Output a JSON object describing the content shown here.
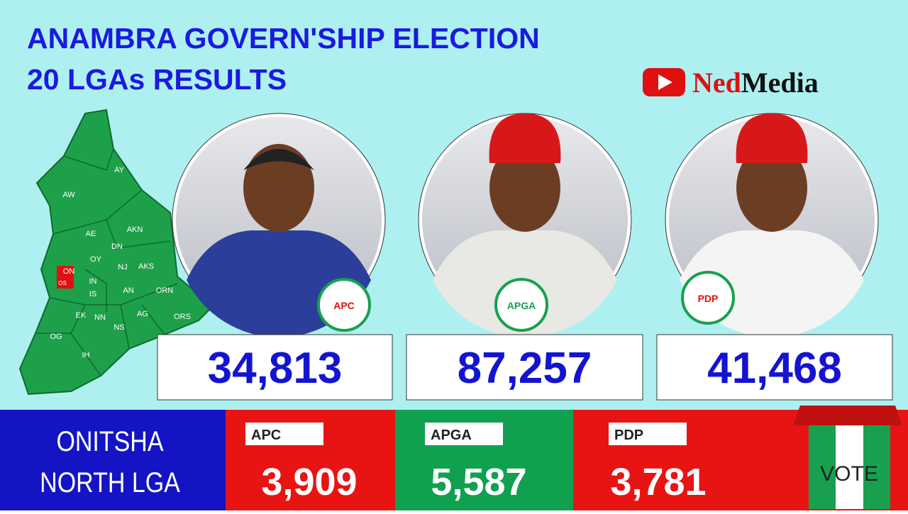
{
  "header": {
    "title_lines": [
      "ANAMBRA GOVERN'SHIP ELECTION",
      "20 LGAs RESULTS"
    ],
    "brand": {
      "part1": "Ned",
      "part2": "Media"
    }
  },
  "map": {
    "labels": [
      "AY",
      "AW",
      "AE",
      "AKN",
      "DN",
      "OY",
      "NJ",
      "AKS",
      "ON",
      "OS",
      "IN",
      "IS",
      "AN",
      "ORN",
      "EK",
      "NN",
      "AG",
      "ORS",
      "NS",
      "OG",
      "IH"
    ]
  },
  "candidates": [
    {
      "party": "APC",
      "total": "34,813"
    },
    {
      "party": "APGA",
      "total": "87,257"
    },
    {
      "party": "PDP",
      "total": "41,468"
    }
  ],
  "lga_results": {
    "name_lines": [
      "ONITSHA",
      "NORTH LGA"
    ],
    "results": [
      {
        "party": "APC",
        "votes": "3,909"
      },
      {
        "party": "APGA",
        "votes": "5,587"
      },
      {
        "party": "PDP",
        "votes": "3,781"
      }
    ]
  },
  "ballot_box": {
    "label": "VOTE"
  }
}
